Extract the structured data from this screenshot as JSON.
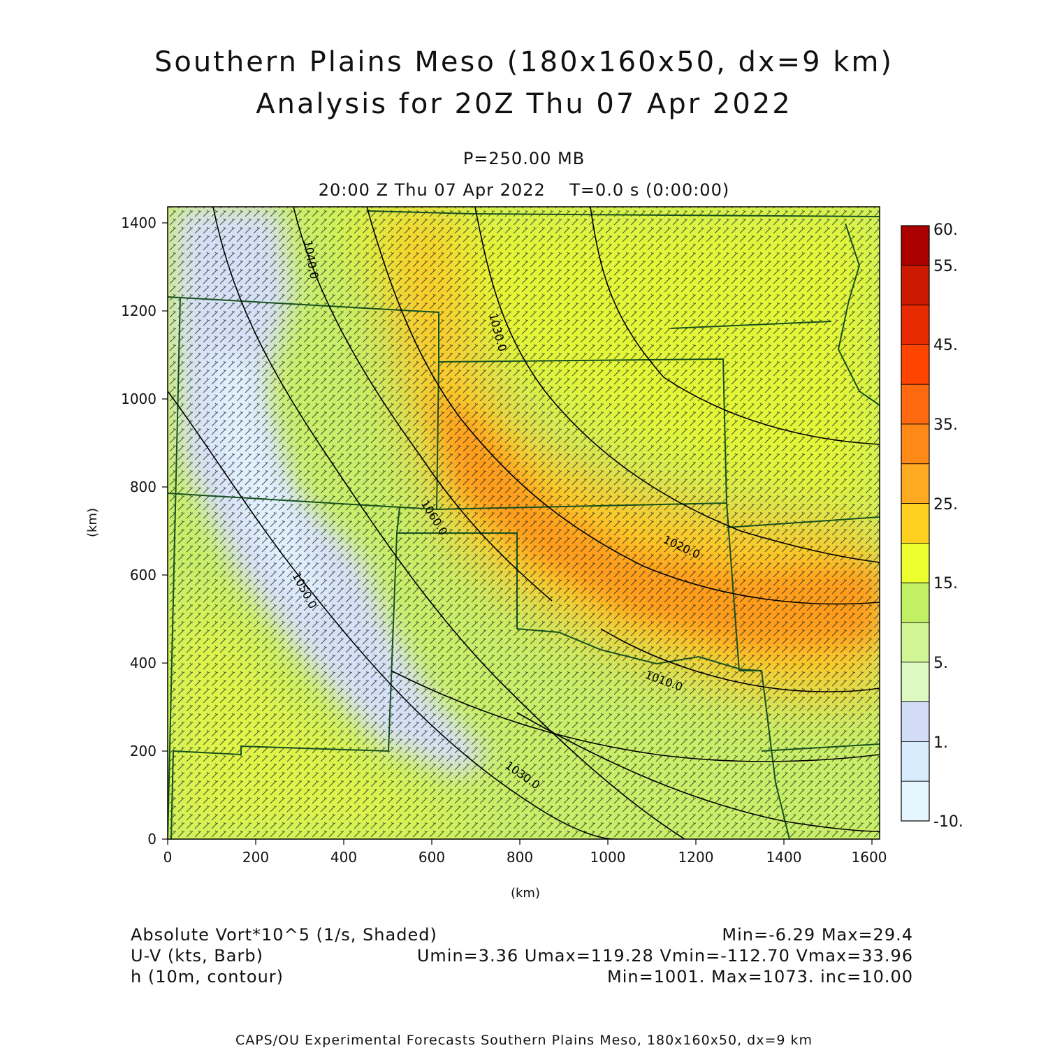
{
  "header": {
    "title_line1": "Southern Plains Meso (180x160x50, dx=9 km)",
    "title_line2": "Analysis for 20Z Thu 07 Apr 2022",
    "level": "P=250.00 MB",
    "valid_time": "20:00 Z Thu 07 Apr 2022    T=0.0 s (0:00:00)"
  },
  "axes": {
    "x_label": "(km)",
    "y_label": "(km)",
    "x_ticks": [
      "0",
      "200",
      "400",
      "600",
      "800",
      "1000",
      "1200",
      "1400",
      "1600"
    ],
    "y_ticks": [
      "0",
      "200",
      "400",
      "600",
      "800",
      "1000",
      "1200",
      "1400"
    ]
  },
  "colorbar": {
    "labels": [
      "60.",
      "55.",
      "45.",
      "35.",
      "25.",
      "15.",
      "5.",
      "1.",
      "-10."
    ],
    "colors": [
      "#aa0000",
      "#cc1a00",
      "#e82a00",
      "#ff4400",
      "#ff6a10",
      "#ff8a18",
      "#ffaa20",
      "#ffd020",
      "#eeff30",
      "#c2f065",
      "#d2f595",
      "#ddf8c0",
      "#d2dcf6",
      "#d8ecfe",
      "#e6f6ff"
    ]
  },
  "contours": {
    "labels": [
      "1040.0",
      "1060.0",
      "1050.0",
      "1030.0",
      "1020.0",
      "1010.0"
    ]
  },
  "footer": {
    "field1": "Absolute Vort*10^5 (1/s, Shaded)",
    "field1_stats": "Min=-6.29 Max=29.4",
    "field2": "U-V (kts, Barb)",
    "field2_stats": "Umin=3.36 Umax=119.28 Vmin=-112.70 Vmax=33.96",
    "field3": "h (10m, contour)",
    "field3_stats": "Min=1001. Max=1073. inc=10.00"
  },
  "credit": "CAPS/OU Experimental Forecasts  Southern Plains Meso, 180x160x50, dx=9 km"
}
